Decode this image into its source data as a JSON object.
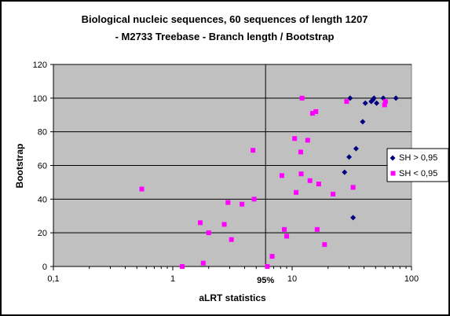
{
  "chart_data": {
    "type": "scatter",
    "title": [
      "Biological nucleic sequences, 60 sequences of length 1207",
      "- M2733 Treebase -  Branch length / Bootstrap"
    ],
    "xlabel": "aLRT statistics",
    "ylabel": "Bootstrap",
    "x_scale": "log",
    "xlim": [
      0.1,
      100
    ],
    "ylim": [
      0,
      120
    ],
    "x_ticks": [
      0.1,
      1,
      10,
      100
    ],
    "x_tick_labels": [
      "0,1",
      "1",
      "10",
      "100"
    ],
    "y_ticks": [
      0,
      20,
      40,
      60,
      80,
      100,
      120
    ],
    "y_tick_labels": [
      "0",
      "20",
      "40",
      "60",
      "80",
      "100",
      "120"
    ],
    "grid": "horizontal",
    "plot_background": "#c0c0c0",
    "legend_position": "right",
    "reference_line": {
      "x": 5.99,
      "label": "95%"
    },
    "series": [
      {
        "name": "SH > 0,95",
        "marker": "diamond",
        "color": "#000080",
        "points": [
          {
            "x": 30.6,
            "y": 100
          },
          {
            "x": 30.0,
            "y": 65
          },
          {
            "x": 27.5,
            "y": 56
          },
          {
            "x": 32.4,
            "y": 29
          },
          {
            "x": 34.3,
            "y": 70
          },
          {
            "x": 39.0,
            "y": 86
          },
          {
            "x": 41.0,
            "y": 97
          },
          {
            "x": 46.0,
            "y": 98
          },
          {
            "x": 47.5,
            "y": 99
          },
          {
            "x": 48.5,
            "y": 100
          },
          {
            "x": 51.0,
            "y": 97
          },
          {
            "x": 58.0,
            "y": 100
          },
          {
            "x": 74.0,
            "y": 100
          }
        ]
      },
      {
        "name": "SH < 0,95",
        "marker": "square",
        "color": "#ff00ff",
        "points": [
          {
            "x": 0.55,
            "y": 46
          },
          {
            "x": 1.2,
            "y": 0
          },
          {
            "x": 1.7,
            "y": 26
          },
          {
            "x": 1.8,
            "y": 2
          },
          {
            "x": 2.0,
            "y": 20
          },
          {
            "x": 2.7,
            "y": 25
          },
          {
            "x": 2.9,
            "y": 38
          },
          {
            "x": 3.1,
            "y": 16
          },
          {
            "x": 3.8,
            "y": 37
          },
          {
            "x": 4.7,
            "y": 69
          },
          {
            "x": 4.8,
            "y": 40
          },
          {
            "x": 6.2,
            "y": 0
          },
          {
            "x": 6.8,
            "y": 6
          },
          {
            "x": 8.2,
            "y": 54
          },
          {
            "x": 8.6,
            "y": 22
          },
          {
            "x": 9.0,
            "y": 18
          },
          {
            "x": 10.5,
            "y": 76
          },
          {
            "x": 10.8,
            "y": 44
          },
          {
            "x": 11.8,
            "y": 68
          },
          {
            "x": 11.9,
            "y": 55
          },
          {
            "x": 12.1,
            "y": 100
          },
          {
            "x": 13.5,
            "y": 75
          },
          {
            "x": 14.1,
            "y": 51
          },
          {
            "x": 14.8,
            "y": 91
          },
          {
            "x": 15.8,
            "y": 92
          },
          {
            "x": 16.2,
            "y": 22
          },
          {
            "x": 16.7,
            "y": 49
          },
          {
            "x": 18.7,
            "y": 13
          },
          {
            "x": 22.0,
            "y": 43
          },
          {
            "x": 28.6,
            "y": 98
          },
          {
            "x": 32.4,
            "y": 47
          },
          {
            "x": 59.5,
            "y": 96
          },
          {
            "x": 60.5,
            "y": 98
          }
        ]
      }
    ]
  }
}
